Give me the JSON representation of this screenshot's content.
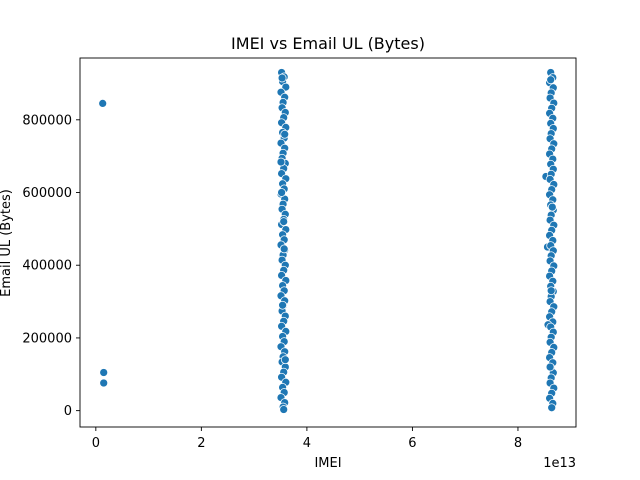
{
  "chart_data": {
    "type": "scatter",
    "title": "IMEI vs Email UL (Bytes)",
    "xlabel": "IMEI",
    "ylabel": "Email UL (Bytes)",
    "x_offset_label": "1e13",
    "xlim": [
      -0.3,
      9.1
    ],
    "ylim": [
      -45000,
      970000
    ],
    "x_ticks": [
      0,
      2,
      4,
      6,
      8
    ],
    "y_ticks": [
      0,
      200000,
      400000,
      600000,
      800000
    ],
    "grid": false,
    "legend": "none",
    "point_color": "#1f77b4",
    "series": [
      {
        "points": [
          [
            0.13,
            845000
          ],
          [
            0.15,
            105000
          ],
          [
            0.15,
            76000
          ],
          [
            3.52,
            930000
          ],
          [
            3.57,
            918000
          ],
          [
            3.54,
            905000
          ],
          [
            3.6,
            890000
          ],
          [
            3.51,
            876000
          ],
          [
            3.58,
            862000
          ],
          [
            3.55,
            848000
          ],
          [
            3.53,
            833000
          ],
          [
            3.59,
            820000
          ],
          [
            3.56,
            806000
          ],
          [
            3.52,
            792000
          ],
          [
            3.6,
            779000
          ],
          [
            3.54,
            765000
          ],
          [
            3.57,
            750000
          ],
          [
            3.51,
            736000
          ],
          [
            3.58,
            722000
          ],
          [
            3.55,
            708000
          ],
          [
            3.53,
            694000
          ],
          [
            3.59,
            680000
          ],
          [
            3.56,
            666000
          ],
          [
            3.52,
            652000
          ],
          [
            3.6,
            638000
          ],
          [
            3.54,
            624000
          ],
          [
            3.57,
            610000
          ],
          [
            3.51,
            596000
          ],
          [
            3.58,
            582000
          ],
          [
            3.55,
            568000
          ],
          [
            3.53,
            554000
          ],
          [
            3.59,
            540000
          ],
          [
            3.56,
            526000
          ],
          [
            3.52,
            512000
          ],
          [
            3.6,
            498000
          ],
          [
            3.54,
            484000
          ],
          [
            3.57,
            470000
          ],
          [
            3.51,
            456000
          ],
          [
            3.58,
            442000
          ],
          [
            3.55,
            428000
          ],
          [
            3.53,
            414000
          ],
          [
            3.59,
            400000
          ],
          [
            3.56,
            386000
          ],
          [
            3.52,
            372000
          ],
          [
            3.6,
            358000
          ],
          [
            3.54,
            344000
          ],
          [
            3.57,
            330000
          ],
          [
            3.51,
            316000
          ],
          [
            3.58,
            302000
          ],
          [
            3.55,
            288000
          ],
          [
            3.53,
            274000
          ],
          [
            3.59,
            260000
          ],
          [
            3.56,
            246000
          ],
          [
            3.52,
            232000
          ],
          [
            3.6,
            218000
          ],
          [
            3.54,
            204000
          ],
          [
            3.57,
            190000
          ],
          [
            3.51,
            176000
          ],
          [
            3.58,
            162000
          ],
          [
            3.55,
            148000
          ],
          [
            3.53,
            134000
          ],
          [
            3.59,
            120000
          ],
          [
            3.56,
            106000
          ],
          [
            3.52,
            92000
          ],
          [
            3.6,
            78000
          ],
          [
            3.54,
            64000
          ],
          [
            3.57,
            50000
          ],
          [
            3.51,
            36000
          ],
          [
            3.58,
            22000
          ],
          [
            3.55,
            10000
          ],
          [
            3.56,
            3000
          ],
          [
            3.53,
            915000
          ],
          [
            3.58,
            760000
          ],
          [
            3.52,
            600000
          ],
          [
            3.57,
            445000
          ],
          [
            3.54,
            290000
          ],
          [
            3.59,
            140000
          ],
          [
            3.51,
            684000
          ],
          [
            3.56,
            520000
          ],
          [
            8.62,
            930000
          ],
          [
            8.66,
            916000
          ],
          [
            8.6,
            902000
          ],
          [
            8.67,
            888000
          ],
          [
            8.63,
            874000
          ],
          [
            8.61,
            860000
          ],
          [
            8.68,
            846000
          ],
          [
            8.64,
            832000
          ],
          [
            8.6,
            818000
          ],
          [
            8.66,
            804000
          ],
          [
            8.62,
            790000
          ],
          [
            8.67,
            776000
          ],
          [
            8.63,
            762000
          ],
          [
            8.61,
            748000
          ],
          [
            8.68,
            734000
          ],
          [
            8.64,
            720000
          ],
          [
            8.6,
            706000
          ],
          [
            8.66,
            692000
          ],
          [
            8.62,
            678000
          ],
          [
            8.67,
            664000
          ],
          [
            8.53,
            644000
          ],
          [
            8.63,
            650000
          ],
          [
            8.61,
            636000
          ],
          [
            8.68,
            622000
          ],
          [
            8.64,
            608000
          ],
          [
            8.6,
            594000
          ],
          [
            8.66,
            580000
          ],
          [
            8.62,
            566000
          ],
          [
            8.67,
            552000
          ],
          [
            8.63,
            538000
          ],
          [
            8.61,
            524000
          ],
          [
            8.68,
            510000
          ],
          [
            8.64,
            496000
          ],
          [
            8.6,
            482000
          ],
          [
            8.66,
            468000
          ],
          [
            8.56,
            450000
          ],
          [
            8.62,
            454000
          ],
          [
            8.67,
            440000
          ],
          [
            8.63,
            426000
          ],
          [
            8.61,
            412000
          ],
          [
            8.68,
            398000
          ],
          [
            8.64,
            384000
          ],
          [
            8.6,
            370000
          ],
          [
            8.66,
            356000
          ],
          [
            8.62,
            342000
          ],
          [
            8.67,
            328000
          ],
          [
            8.63,
            314000
          ],
          [
            8.61,
            300000
          ],
          [
            8.68,
            286000
          ],
          [
            8.64,
            272000
          ],
          [
            8.6,
            258000
          ],
          [
            8.66,
            244000
          ],
          [
            8.57,
            236000
          ],
          [
            8.62,
            230000
          ],
          [
            8.67,
            216000
          ],
          [
            8.63,
            202000
          ],
          [
            8.61,
            188000
          ],
          [
            8.68,
            174000
          ],
          [
            8.64,
            160000
          ],
          [
            8.6,
            146000
          ],
          [
            8.66,
            132000
          ],
          [
            8.62,
            118000
          ],
          [
            8.67,
            104000
          ],
          [
            8.63,
            90000
          ],
          [
            8.61,
            76000
          ],
          [
            8.68,
            62000
          ],
          [
            8.64,
            48000
          ],
          [
            8.6,
            34000
          ],
          [
            8.66,
            20000
          ],
          [
            8.64,
            8000
          ],
          [
            8.62,
            910000
          ],
          [
            8.65,
            560000
          ],
          [
            8.63,
            330000
          ],
          [
            8.61,
            120000
          ]
        ]
      }
    ]
  }
}
